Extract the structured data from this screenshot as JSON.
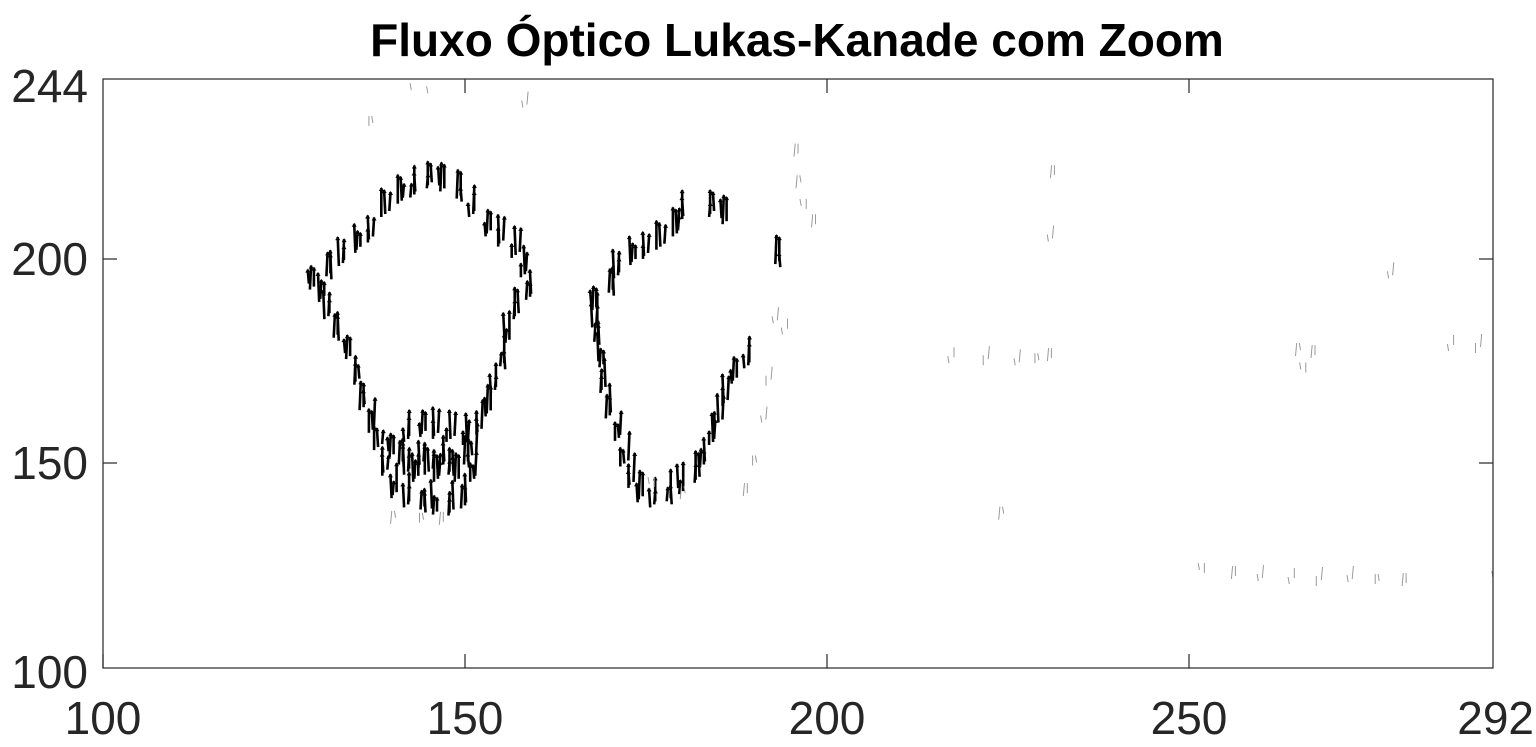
{
  "chart_data": {
    "type": "quiver",
    "title": "Fluxo Óptico Lukas-Kanade com Zoom",
    "xlabel": "",
    "ylabel": "",
    "xlim": [
      100,
      292
    ],
    "ylim": [
      100,
      244
    ],
    "x_ticks": [
      "100",
      "150",
      "200",
      "250",
      "292"
    ],
    "y_ticks": [
      "100",
      "150",
      "200",
      "244"
    ],
    "grid": false,
    "legend": "none",
    "colors": {
      "strong": "#000000",
      "weak": "#9a9a9a",
      "axes": "#262626"
    },
    "regions": [
      {
        "name": "left-figure-outline",
        "strength": "strong",
        "points": [
          [
            129,
            193
          ],
          [
            131,
            196
          ],
          [
            133,
            199
          ],
          [
            135,
            202
          ],
          [
            137,
            205
          ],
          [
            139,
            211
          ],
          [
            141,
            214
          ],
          [
            143,
            216
          ],
          [
            145,
            218
          ],
          [
            147,
            217
          ],
          [
            149,
            215
          ],
          [
            151,
            211
          ],
          [
            153,
            206
          ],
          [
            155,
            204
          ],
          [
            157,
            201
          ],
          [
            158,
            196
          ],
          [
            159,
            191
          ],
          [
            157,
            186
          ],
          [
            156,
            180
          ],
          [
            155,
            174
          ],
          [
            154,
            168
          ],
          [
            153,
            162
          ],
          [
            152,
            158
          ],
          [
            151,
            152
          ],
          [
            151,
            146
          ],
          [
            150,
            140
          ],
          [
            148,
            138
          ],
          [
            146,
            138
          ],
          [
            144,
            139
          ],
          [
            142,
            140
          ],
          [
            140,
            142
          ],
          [
            139,
            148
          ],
          [
            138,
            154
          ],
          [
            137,
            158
          ],
          [
            136,
            164
          ],
          [
            135,
            170
          ],
          [
            134,
            176
          ],
          [
            132,
            181
          ],
          [
            131,
            186
          ],
          [
            130,
            190
          ]
        ]
      },
      {
        "name": "left-figure-legs",
        "strength": "strong",
        "points": [
          [
            140,
            152
          ],
          [
            141,
            150
          ],
          [
            142,
            148
          ],
          [
            143,
            146
          ],
          [
            144,
            150
          ],
          [
            145,
            148
          ],
          [
            146,
            146
          ],
          [
            147,
            150
          ],
          [
            148,
            148
          ],
          [
            149,
            146
          ],
          [
            150,
            150
          ],
          [
            142,
            156
          ],
          [
            144,
            157
          ],
          [
            146,
            157
          ],
          [
            148,
            156
          ],
          [
            150,
            155
          ]
        ]
      },
      {
        "name": "right-figure-outline",
        "strength": "strong",
        "points": [
          [
            168,
            188
          ],
          [
            170,
            192
          ],
          [
            171,
            196
          ],
          [
            173,
            199
          ],
          [
            175,
            201
          ],
          [
            177,
            203
          ],
          [
            179,
            206
          ],
          [
            180,
            210
          ],
          [
            184,
            211
          ],
          [
            186,
            209
          ],
          [
            193,
            199
          ],
          [
            189,
            174
          ],
          [
            187,
            170
          ],
          [
            186,
            165
          ],
          [
            185,
            160
          ],
          [
            184,
            155
          ],
          [
            183,
            150
          ],
          [
            182,
            146
          ],
          [
            180,
            143
          ],
          [
            178,
            141
          ],
          [
            176,
            140
          ],
          [
            174,
            141
          ],
          [
            173,
            145
          ],
          [
            172,
            150
          ],
          [
            171,
            156
          ],
          [
            170,
            162
          ],
          [
            169,
            168
          ],
          [
            169,
            174
          ],
          [
            168,
            180
          ],
          [
            168,
            184
          ]
        ]
      },
      {
        "name": "scattered-weak-flow",
        "strength": "weak",
        "points": [
          [
            139,
            243
          ],
          [
            141,
            242
          ],
          [
            143,
            242
          ],
          [
            145,
            241
          ],
          [
            157,
            243
          ],
          [
            158,
            237
          ],
          [
            137,
            233
          ],
          [
            196,
            226
          ],
          [
            196,
            218
          ],
          [
            197,
            212
          ],
          [
            198,
            208
          ],
          [
            193,
            185
          ],
          [
            194,
            182
          ],
          [
            192,
            170
          ],
          [
            191,
            160
          ],
          [
            190,
            150
          ],
          [
            189,
            143
          ],
          [
            180,
            142
          ],
          [
            176,
            144
          ],
          [
            231,
            220
          ],
          [
            231,
            205
          ],
          [
            217,
            175
          ],
          [
            222,
            175
          ],
          [
            226,
            174
          ],
          [
            229,
            175
          ],
          [
            231,
            176
          ],
          [
            224,
            137
          ],
          [
            252,
            123
          ],
          [
            256,
            122
          ],
          [
            260,
            122
          ],
          [
            264,
            121
          ],
          [
            268,
            121
          ],
          [
            272,
            121
          ],
          [
            276,
            121
          ],
          [
            280,
            121
          ],
          [
            265,
            177
          ],
          [
            266,
            172
          ],
          [
            267,
            176
          ],
          [
            278,
            196
          ],
          [
            286,
            178
          ],
          [
            290,
            178
          ],
          [
            292,
            122
          ],
          [
            144,
            136
          ],
          [
            147,
            136
          ],
          [
            140,
            136
          ]
        ]
      }
    ]
  }
}
